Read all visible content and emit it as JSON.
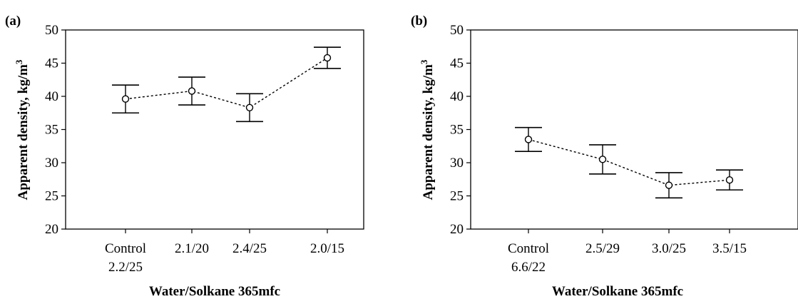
{
  "chart_data": [
    {
      "type": "line",
      "panel_label": "(a)",
      "xlabel": "Water/Solkane 365mfc",
      "ylabel": "Apparent density, kg/m",
      "ylabel_superscript": "3",
      "ylim": [
        20,
        50
      ],
      "yticks": [
        "20",
        "25",
        "30",
        "35",
        "40",
        "45",
        "50"
      ],
      "categories": [
        [
          "Control",
          "2.2/25"
        ],
        [
          "2.1/20"
        ],
        [
          "2.4/25"
        ],
        [
          "2.0/15"
        ]
      ],
      "series": [
        {
          "values": [
            39.6,
            40.8,
            38.3,
            45.8
          ],
          "error_low": [
            37.5,
            38.7,
            36.2,
            44.2
          ],
          "error_high": [
            41.7,
            42.9,
            40.4,
            47.4
          ]
        }
      ],
      "line_style": "dashed",
      "marker": "open-circle",
      "grid": false
    },
    {
      "type": "line",
      "panel_label": "(b)",
      "xlabel": "Water/Solkane 365mfc",
      "ylabel": "Apparent density, kg/m",
      "ylabel_superscript": "3",
      "ylim": [
        20,
        50
      ],
      "yticks": [
        "20",
        "25",
        "30",
        "35",
        "40",
        "45",
        "50"
      ],
      "categories": [
        [
          "Control",
          "6.6/22"
        ],
        [
          "2.5/29"
        ],
        [
          "3.0/25"
        ],
        [
          "3.5/15"
        ]
      ],
      "series": [
        {
          "values": [
            33.5,
            30.5,
            26.6,
            27.4
          ],
          "error_low": [
            31.7,
            28.3,
            24.7,
            25.9
          ],
          "error_high": [
            35.3,
            32.7,
            28.5,
            28.9
          ]
        }
      ],
      "line_style": "dashed",
      "marker": "open-circle",
      "grid": false
    }
  ]
}
